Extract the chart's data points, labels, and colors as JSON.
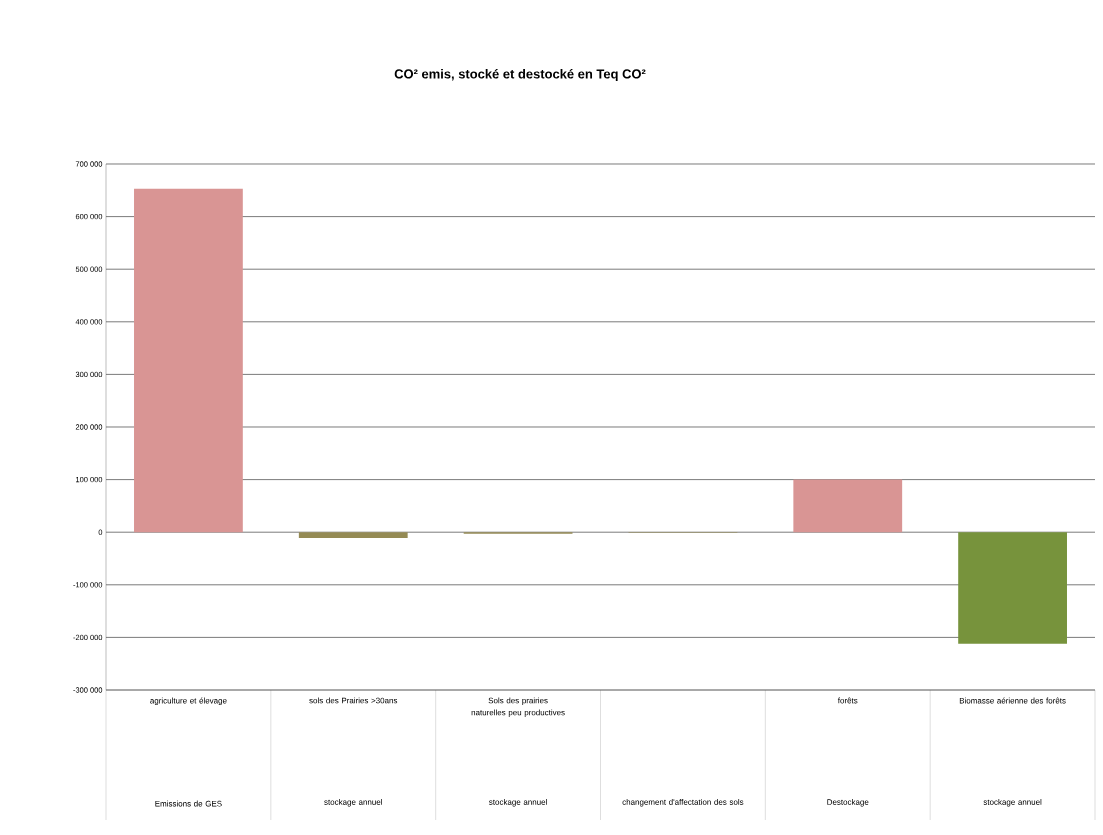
{
  "chart_data": {
    "type": "bar",
    "title": "CO² emis, stocké et destocké en Teq CO²",
    "categories": [
      "agriculture et élevage",
      "sols des Prairies >30ans",
      "Sols des prairies naturelles peu productives",
      null,
      "forêts",
      "Biomasse aérienne des forêts"
    ],
    "values": [
      653000,
      -11000,
      -3000,
      -1000,
      100000,
      -212000
    ],
    "colors": [
      "#d99594",
      "#948a54",
      "#948a54",
      "#948a54",
      "#d99594",
      "#77933c"
    ],
    "annotations": [
      "Emissions de GES",
      "stockage annuel",
      "stockage annuel",
      "changement d'affectation des sols",
      "Destockage",
      "stockage annuel"
    ],
    "ylim": [
      -300000,
      700000
    ],
    "yticks": [
      {
        "value": -300000,
        "label": "-300 000"
      },
      {
        "value": -200000,
        "label": "-200 000"
      },
      {
        "value": -100000,
        "label": "-100 000"
      },
      0,
      {
        "value": 100000,
        "label": "100 000"
      },
      {
        "value": 200000,
        "label": "200 000"
      },
      {
        "value": 300000,
        "label": "300 000"
      },
      {
        "value": 400000,
        "label": "400 000"
      },
      {
        "value": 500000,
        "label": "500 000"
      },
      {
        "value": 600000,
        "label": "600 000"
      },
      {
        "value": 700000,
        "label": "700 000"
      }
    ],
    "grid": "y"
  }
}
